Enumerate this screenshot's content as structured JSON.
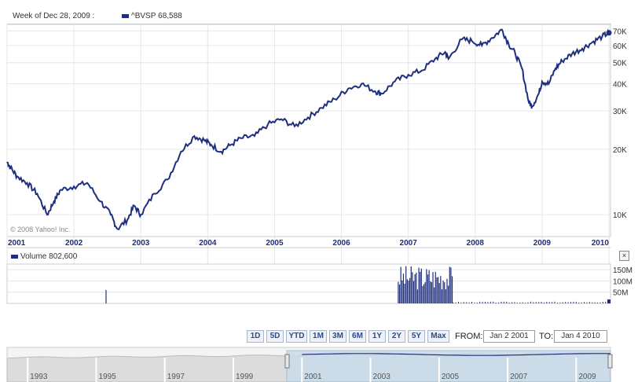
{
  "header": {
    "week_label": "Week of Dec 28, 2009 :",
    "series_label": "^BVSP",
    "series_value": "68,588"
  },
  "volume_header": {
    "label": "Volume",
    "value": "802,600"
  },
  "close_symbol": "×",
  "copyright": "© 2008 Yahoo! Inc.",
  "range_buttons": [
    "1D",
    "5D",
    "YTD",
    "1M",
    "3M",
    "6M",
    "1Y",
    "2Y",
    "5Y",
    "Max"
  ],
  "date_range": {
    "from_label": "FROM:",
    "from_value": "Jan 2 2001",
    "to_label": "TO:",
    "to_value": "Jan 4 2010"
  },
  "colors": {
    "series": "#1f2f7d",
    "navigator_fill": "#c9dbe9",
    "grid": "#e6e6e6"
  },
  "chart_data": [
    {
      "type": "line",
      "name": "price",
      "x_tick_labels": [
        "2001",
        "2002",
        "2003",
        "2004",
        "2005",
        "2006",
        "2007",
        "2008",
        "2009",
        "2010"
      ],
      "y_tick_labels": [
        "70K",
        "60K",
        "50K",
        "40K",
        "30K",
        "20K",
        "10K"
      ],
      "y_scale": "log",
      "ylim": [
        8000,
        75000
      ],
      "xlim": [
        2001.0,
        2010.0
      ],
      "grid": true,
      "series": [
        {
          "x": [
            2001.0,
            2001.05,
            2001.15,
            2001.3,
            2001.45,
            2001.6,
            2001.7,
            2001.8,
            2002.0,
            2002.2,
            2002.4,
            2002.55,
            2002.65,
            2002.8,
            2002.9,
            2003.0,
            2003.2,
            2003.4,
            2003.6,
            2003.8,
            2003.95,
            2004.05,
            2004.2,
            2004.35,
            2004.5,
            2004.7,
            2004.9,
            2005.1,
            2005.3,
            2005.5,
            2005.7,
            2005.9,
            2006.1,
            2006.3,
            2006.5,
            2006.6,
            2006.8,
            2007.0,
            2007.2,
            2007.4,
            2007.55,
            2007.6,
            2007.8,
            2007.95,
            2008.1,
            2008.25,
            2008.4,
            2008.5,
            2008.6,
            2008.7,
            2008.8,
            2008.85,
            2008.95,
            2009.0,
            2009.1,
            2009.2,
            2009.3,
            2009.45,
            2009.6,
            2009.75,
            2009.9,
            2010.0
          ],
          "y": [
            17500,
            16500,
            15000,
            14000,
            12500,
            10000,
            11500,
            13000,
            13500,
            14000,
            11500,
            10000,
            8600,
            9500,
            11000,
            10000,
            12500,
            14500,
            19500,
            23000,
            22000,
            21000,
            19500,
            21000,
            22500,
            23000,
            26000,
            27500,
            25500,
            28000,
            31000,
            34000,
            38000,
            40000,
            37000,
            36000,
            41000,
            44000,
            46000,
            52000,
            56000,
            52000,
            64000,
            63000,
            60000,
            65000,
            71000,
            61000,
            55000,
            47000,
            33000,
            31500,
            36000,
            41000,
            40000,
            47000,
            51000,
            55000,
            58000,
            62000,
            66000,
            68588
          ]
        }
      ]
    },
    {
      "type": "bar",
      "name": "Volume",
      "y_tick_labels": [
        "150M",
        "100M",
        "50M"
      ],
      "ylim": [
        0,
        175000000
      ],
      "spikes": [
        {
          "x": 2002.48,
          "value": 60000000
        }
      ],
      "dense_period": {
        "start": 2006.85,
        "end": 2007.67,
        "min_value": 60000000,
        "max_value": 170000000
      },
      "low_period": {
        "start": 2007.67,
        "end": 2010.0,
        "value": 5000000
      }
    },
    {
      "type": "area",
      "name": "navigator",
      "x_tick_labels": [
        "1993",
        "1995",
        "1997",
        "1999",
        "2001",
        "2003",
        "2005",
        "2007",
        "2009"
      ],
      "selection": [
        "2001",
        "2010"
      ]
    }
  ]
}
